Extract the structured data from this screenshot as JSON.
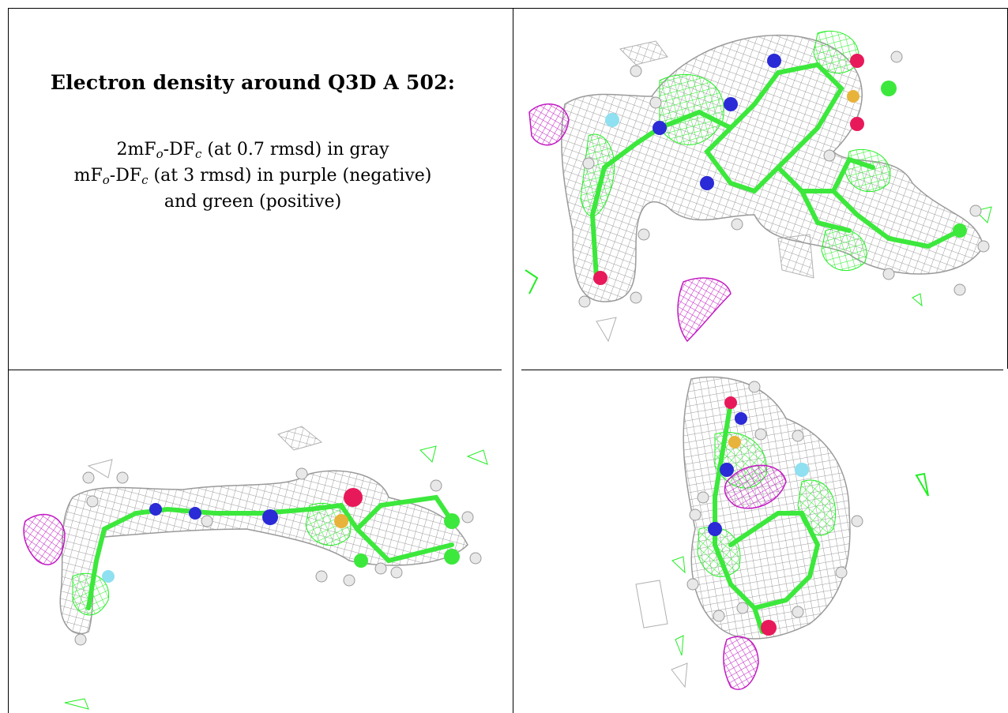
{
  "caption": {
    "title": "Electron density around Q3D A 502:",
    "line1_prefix": "2mF",
    "line1_sub1": "o",
    "line1_mid": "-DF",
    "line1_sub2": "c",
    "line1_suffix": " (at 0.7 rmsd) in gray",
    "line2_prefix": "mF",
    "line2_sub1": "o",
    "line2_mid": "-DF",
    "line2_sub2": "c",
    "line2_suffix": " (at 3 rmsd) in purple (negative)",
    "line3": "and green (positive)"
  },
  "colors": {
    "mesh_gray": "#9a9a9a",
    "positive_green": "#22ee22",
    "negative_purple": "#c21bc2",
    "carbon": "#3ce83c",
    "nitrogen": "#2a2ad6",
    "oxygen": "#e8195a",
    "sulfur": "#e8b33a",
    "fluorine": "#8fe0f0",
    "hydrogen": "#e8e8e8",
    "grid_line": "#000000"
  },
  "panels": [
    {
      "name": "view-top-right"
    },
    {
      "name": "view-bottom-left"
    },
    {
      "name": "view-bottom-right"
    }
  ]
}
